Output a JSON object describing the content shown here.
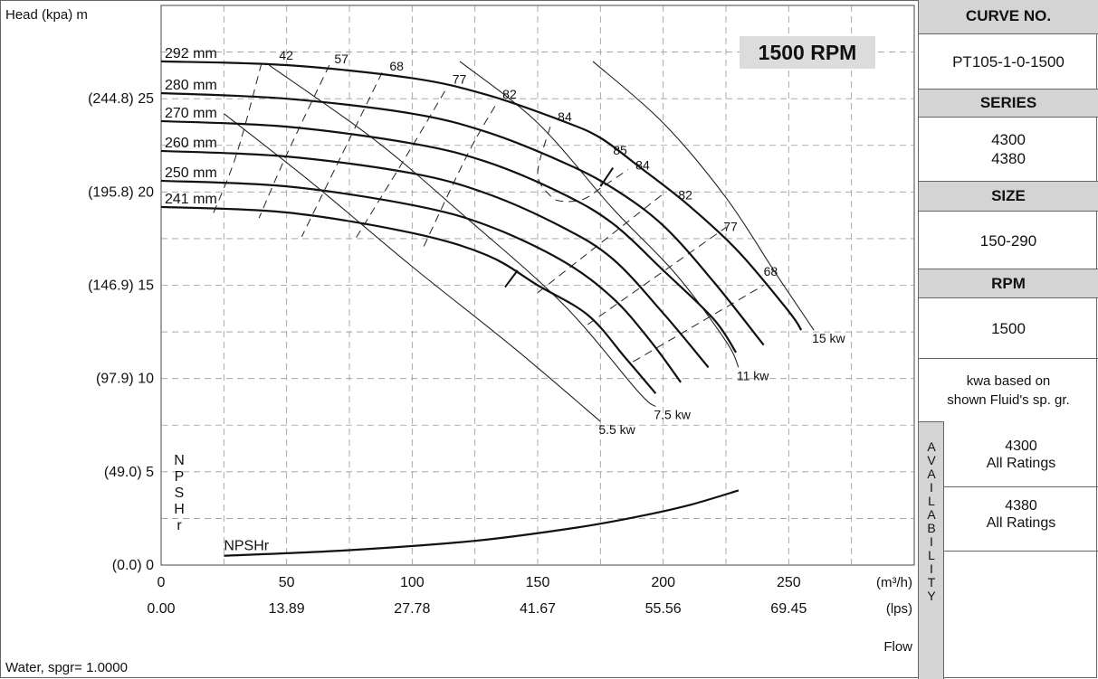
{
  "chart_data": {
    "type": "line",
    "title": "1500 RPM",
    "ylabel": "Head (kpa)  m",
    "y_ticks": [
      {
        "label": "(0.0) 0",
        "v": 0
      },
      {
        "label": "(49.0) 5",
        "v": 5
      },
      {
        "label": "(97.9) 10",
        "v": 10
      },
      {
        "label": "(146.9) 15",
        "v": 15
      },
      {
        "label": "(195.8) 20",
        "v": 20
      },
      {
        "label": "(244.8) 25",
        "v": 25
      }
    ],
    "x_ticks": [
      {
        "label": "0",
        "v": 0
      },
      {
        "label": "50",
        "v": 50
      },
      {
        "label": "100",
        "v": 100
      },
      {
        "label": "150",
        "v": 150
      },
      {
        "label": "200",
        "v": 200
      },
      {
        "label": "250",
        "v": 250
      }
    ],
    "x_ticks_lps": [
      {
        "label": "0.00",
        "v": 0
      },
      {
        "label": "13.89",
        "v": 50
      },
      {
        "label": "27.78",
        "v": 100
      },
      {
        "label": "41.67",
        "v": 150
      },
      {
        "label": "55.56",
        "v": 200
      },
      {
        "label": "69.45",
        "v": 250
      }
    ],
    "x_unit_primary": "(m³/h)",
    "x_unit_secondary": "(lps)",
    "xlabel": "Flow",
    "xlim": [
      0,
      300
    ],
    "ylim": [
      0,
      30
    ],
    "grid": true,
    "npsh_axis_label": "N P S H r",
    "fluid_note": "Water, spgr= 1.0000",
    "head_curves": [
      {
        "name": "292 mm",
        "points": [
          [
            0,
            27.0
          ],
          [
            50,
            26.8
          ],
          [
            100,
            26.1
          ],
          [
            130,
            25.2
          ],
          [
            160,
            23.8
          ],
          [
            175,
            22.9
          ],
          [
            190,
            21.4
          ],
          [
            210,
            19.3
          ],
          [
            230,
            16.8
          ],
          [
            250,
            13.6
          ],
          [
            255,
            12.6
          ]
        ]
      },
      {
        "name": "280 mm",
        "points": [
          [
            0,
            25.3
          ],
          [
            50,
            25.0
          ],
          [
            100,
            24.2
          ],
          [
            130,
            23.2
          ],
          [
            160,
            21.6
          ],
          [
            180,
            20.2
          ],
          [
            200,
            18.2
          ],
          [
            220,
            15.2
          ],
          [
            240,
            11.8
          ]
        ]
      },
      {
        "name": "270 mm",
        "points": [
          [
            0,
            23.8
          ],
          [
            50,
            23.5
          ],
          [
            100,
            22.6
          ],
          [
            130,
            21.6
          ],
          [
            160,
            19.9
          ],
          [
            180,
            18.3
          ],
          [
            200,
            15.8
          ],
          [
            220,
            13.2
          ],
          [
            229,
            11.4
          ]
        ]
      },
      {
        "name": "260 mm",
        "points": [
          [
            0,
            22.2
          ],
          [
            50,
            21.9
          ],
          [
            100,
            21.0
          ],
          [
            130,
            19.9
          ],
          [
            160,
            18.1
          ],
          [
            180,
            16.4
          ],
          [
            200,
            13.5
          ],
          [
            218,
            10.6
          ]
        ]
      },
      {
        "name": "250 mm",
        "points": [
          [
            0,
            20.6
          ],
          [
            50,
            20.3
          ],
          [
            100,
            19.3
          ],
          [
            130,
            18.2
          ],
          [
            160,
            16.3
          ],
          [
            180,
            14.3
          ],
          [
            195,
            12.0
          ],
          [
            207,
            9.8
          ]
        ]
      },
      {
        "name": "241 mm",
        "points": [
          [
            0,
            19.2
          ],
          [
            50,
            18.9
          ],
          [
            100,
            17.8
          ],
          [
            130,
            16.6
          ],
          [
            150,
            15.0
          ],
          [
            170,
            13.4
          ],
          [
            185,
            11.1
          ],
          [
            197,
            9.2
          ]
        ]
      }
    ],
    "power_curves": [
      {
        "name": "5.5 kw",
        "points": [
          [
            25,
            24.2
          ],
          [
            60,
            20.5
          ],
          [
            100,
            16.0
          ],
          [
            140,
            11.7
          ],
          [
            175,
            7.7
          ]
        ]
      },
      {
        "name": "7.5 kw",
        "points": [
          [
            43,
            26.8
          ],
          [
            85,
            22.8
          ],
          [
            120,
            18.8
          ],
          [
            160,
            14.0
          ],
          [
            190,
            9.3
          ],
          [
            197,
            8.5
          ]
        ]
      },
      {
        "name": "11 kw",
        "points": [
          [
            119,
            27.0
          ],
          [
            150,
            23.7
          ],
          [
            180,
            19.1
          ],
          [
            205,
            15.6
          ],
          [
            225,
            12.0
          ],
          [
            230,
            10.6
          ]
        ]
      },
      {
        "name": "15 kw",
        "points": [
          [
            172,
            27.0
          ],
          [
            200,
            23.7
          ],
          [
            225,
            19.7
          ],
          [
            245,
            15.6
          ],
          [
            260,
            12.6
          ]
        ]
      }
    ],
    "efficiency_curves": [
      {
        "name": "42",
        "points": [
          [
            40,
            26.9
          ],
          [
            30,
            22.0
          ],
          [
            20,
            18.6
          ]
        ]
      },
      {
        "name": "57",
        "points": [
          [
            67,
            26.8
          ],
          [
            50,
            22.0
          ],
          [
            39,
            18.6
          ]
        ]
      },
      {
        "name": "68",
        "points": [
          [
            88,
            26.4
          ],
          [
            72,
            22.0
          ],
          [
            56,
            17.6
          ]
        ]
      },
      {
        "name": "77",
        "points": [
          [
            113,
            25.4
          ],
          [
            98,
            22.0
          ],
          [
            77,
            17.4
          ]
        ]
      },
      {
        "name": "82",
        "points": [
          [
            133,
            24.6
          ],
          [
            122,
            22.0
          ],
          [
            104,
            16.9
          ]
        ]
      },
      {
        "name": "84",
        "points": [
          [
            155,
            23.5
          ],
          [
            150,
            21.0
          ],
          [
            155,
            19.8
          ],
          [
            160,
            19.5
          ],
          [
            168,
            19.6
          ],
          [
            175,
            20.2
          ],
          [
            186,
            21.2
          ]
        ]
      }
    ],
    "efficiency_flow_lines": [
      {
        "name": "82",
        "points": [
          [
            150,
            14.6
          ],
          [
            200,
            19.9
          ]
        ]
      },
      {
        "name": "77",
        "points": [
          [
            170,
            12.9
          ],
          [
            225,
            18.1
          ]
        ]
      },
      {
        "name": "68",
        "points": [
          [
            188,
            10.9
          ],
          [
            240,
            15.0
          ]
        ]
      }
    ],
    "eff_labels": [
      {
        "text": "42",
        "x": 47,
        "y": 27.1
      },
      {
        "text": "57",
        "x": 69,
        "y": 26.9
      },
      {
        "text": "68",
        "x": 91,
        "y": 26.5
      },
      {
        "text": "77",
        "x": 116,
        "y": 25.8
      },
      {
        "text": "82",
        "x": 136,
        "y": 25.0
      },
      {
        "text": "84",
        "x": 158,
        "y": 23.8
      },
      {
        "text": "85",
        "x": 180,
        "y": 22.0
      },
      {
        "text": "84",
        "x": 189,
        "y": 21.2
      },
      {
        "text": "82",
        "x": 206,
        "y": 19.6
      },
      {
        "text": "77",
        "x": 224,
        "y": 17.9
      },
      {
        "text": "68",
        "x": 240,
        "y": 15.5
      }
    ],
    "bep_marks": [
      {
        "points": [
          [
            175,
            20.3
          ],
          [
            180,
            21.3
          ]
        ]
      },
      {
        "points": [
          [
            137,
            14.9
          ],
          [
            142,
            15.8
          ]
        ]
      }
    ],
    "npshr": {
      "name": "NPSHr",
      "points": [
        [
          25,
          0.5
        ],
        [
          75,
          0.8
        ],
        [
          125,
          1.3
        ],
        [
          165,
          2.0
        ],
        [
          190,
          2.6
        ],
        [
          210,
          3.2
        ],
        [
          230,
          4.0
        ]
      ]
    }
  },
  "panel": {
    "curve_no_header": "CURVE NO.",
    "curve_no": "PT105-1-0-1500",
    "series_header": "SERIES",
    "series_values": [
      "4300",
      "4380"
    ],
    "size_header": "SIZE",
    "size": "150-290",
    "rpm_header": "RPM",
    "rpm": "1500",
    "kwa_note_lines": [
      "kwa based on",
      "shown Fluid's sp. gr."
    ],
    "availability_letters": [
      "A",
      "V",
      "A",
      "I",
      "L",
      "A",
      "B",
      "I",
      "L",
      "I",
      "T",
      "Y"
    ],
    "availability": [
      {
        "model": "4300",
        "rating": "All Ratings"
      },
      {
        "model": "4380",
        "rating": "All Ratings"
      }
    ]
  }
}
